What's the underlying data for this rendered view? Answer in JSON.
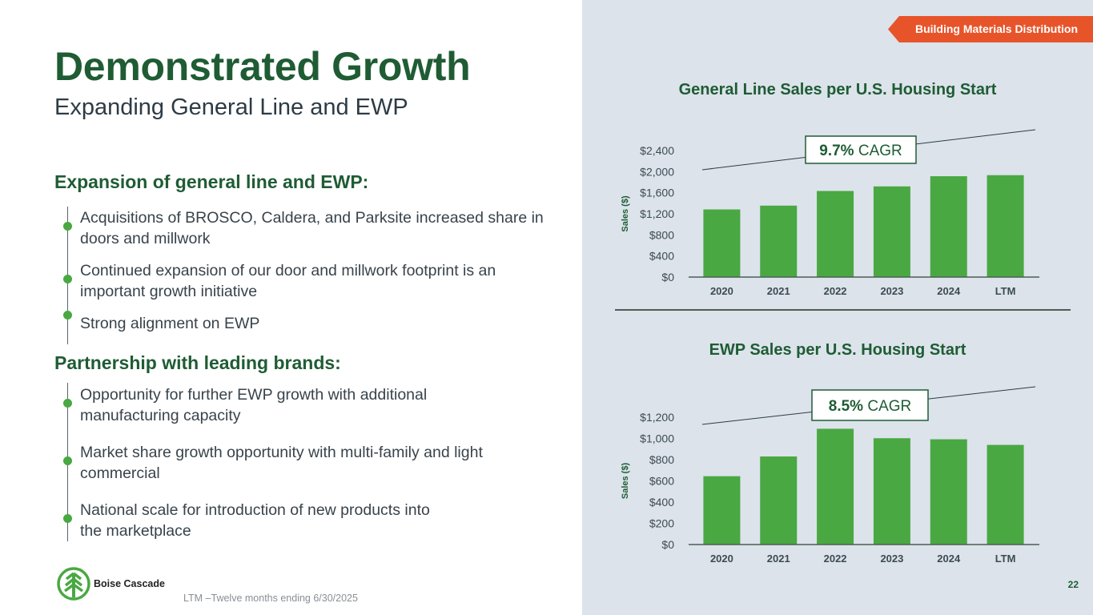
{
  "tag": "Building Materials Distribution",
  "title": "Demonstrated Growth",
  "subtitle": "Expanding General Line and EWP",
  "sections": [
    {
      "heading": "Expansion of general line and EWP:",
      "bullets": [
        "Acquisitions of BROSCO, Caldera, and Parksite increased share in doors and millwork",
        "Continued expansion of our door and millwork footprint is an important growth initiative",
        "Strong alignment on EWP"
      ]
    },
    {
      "heading": "Partnership with leading brands:",
      "bullets": [
        "Opportunity for further EWP growth with additional manufacturing capacity",
        "Market share growth opportunity with multi-family and light commercial",
        "National scale for introduction of new products into the marketplace"
      ]
    }
  ],
  "logo_text": "Boise Cascade",
  "footnote": "LTM –Twelve months ending 6/30/2025",
  "page_number": "22",
  "colors": {
    "brand_green": "#1f5c34",
    "bar_green": "#4aa842",
    "tag_orange": "#e8542a",
    "panel_bg": "#dce3eb"
  },
  "chart_data": [
    {
      "type": "bar",
      "title": "General Line Sales per U.S. Housing Start",
      "ylabel": "Sales ($)",
      "xlabel": "",
      "categories": [
        "2020",
        "2021",
        "2022",
        "2023",
        "2024",
        "LTM"
      ],
      "values": [
        1283,
        1355,
        1633,
        1720,
        1913,
        1933
      ],
      "yticks": [
        "$0",
        "$400",
        "$800",
        "$1,200",
        "$1,600",
        "$2,000",
        "$2,400"
      ],
      "ylim": [
        0,
        2400
      ],
      "grid": false,
      "annotation": {
        "value": "9.7%",
        "label": "CAGR"
      }
    },
    {
      "type": "bar",
      "title": "EWP Sales per U.S. Housing Start",
      "ylabel": "Sales ($)",
      "xlabel": "",
      "categories": [
        "2020",
        "2021",
        "2022",
        "2023",
        "2024",
        "LTM"
      ],
      "values": [
        644,
        830,
        1091,
        1002,
        992,
        939
      ],
      "yticks": [
        "$0",
        "$200",
        "$400",
        "$600",
        "$800",
        "$1,000",
        "$1,200"
      ],
      "ylim": [
        0,
        1200
      ],
      "grid": false,
      "annotation": {
        "value": "8.5%",
        "label": "CAGR"
      }
    }
  ]
}
